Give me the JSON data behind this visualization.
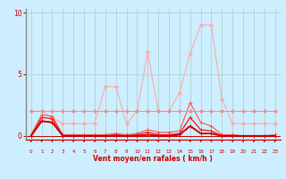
{
  "title": "",
  "xlabel": "Vent moyen/en rafales ( km/h )",
  "x": [
    0,
    1,
    2,
    3,
    4,
    5,
    6,
    7,
    8,
    9,
    10,
    11,
    12,
    13,
    14,
    15,
    16,
    17,
    18,
    19,
    20,
    21,
    22,
    23
  ],
  "lines": [
    {
      "color": "#ffaaaa",
      "linewidth": 0.8,
      "marker": "D",
      "markersize": 2.0,
      "y": [
        2,
        2,
        1.5,
        1,
        1,
        1,
        1,
        4,
        4,
        1,
        2,
        6.8,
        2,
        2,
        3.5,
        6.7,
        9,
        9,
        3,
        1,
        1,
        1,
        1,
        1
      ]
    },
    {
      "color": "#ff5555",
      "linewidth": 0.8,
      "marker": "+",
      "markersize": 3,
      "y": [
        0.1,
        1.7,
        1.6,
        0.1,
        0.1,
        0.1,
        0.1,
        0.1,
        0.2,
        0.1,
        0.2,
        0.5,
        0.3,
        0.3,
        0.4,
        2.7,
        1.1,
        0.8,
        0.1,
        0.1,
        0.0,
        0.0,
        0.0,
        0.1
      ]
    },
    {
      "color": "#ff2222",
      "linewidth": 1.0,
      "marker": "+",
      "markersize": 3,
      "y": [
        0.0,
        1.5,
        1.4,
        0.0,
        0.0,
        0.0,
        0.0,
        0.0,
        0.1,
        0.0,
        0.1,
        0.3,
        0.1,
        0.1,
        0.2,
        1.5,
        0.5,
        0.4,
        0.0,
        0.0,
        0.0,
        0.0,
        0.0,
        0.0
      ]
    },
    {
      "color": "#cc0000",
      "linewidth": 1.4,
      "marker": "+",
      "markersize": 3,
      "y": [
        0.0,
        1.2,
        1.1,
        0.0,
        0.0,
        0.0,
        0.0,
        0.0,
        0.0,
        0.0,
        0.0,
        0.1,
        0.0,
        0.0,
        0.1,
        0.8,
        0.2,
        0.2,
        0.0,
        0.0,
        0.0,
        0.0,
        0.0,
        0.0
      ]
    },
    {
      "color": "#ff8888",
      "linewidth": 0.7,
      "marker": "D",
      "markersize": 2.0,
      "y": [
        2,
        2,
        2,
        2,
        2,
        2,
        2,
        2,
        2,
        2,
        2,
        2,
        2,
        2,
        2,
        2,
        2,
        2,
        2,
        2,
        2,
        2,
        2,
        2
      ]
    }
  ],
  "ylim": [
    0,
    10
  ],
  "xlim": [
    0,
    23
  ],
  "yticks": [
    0,
    5,
    10
  ],
  "xticks": [
    0,
    1,
    2,
    3,
    4,
    5,
    6,
    7,
    8,
    9,
    10,
    11,
    12,
    13,
    14,
    15,
    16,
    17,
    18,
    19,
    20,
    21,
    22,
    23
  ],
  "bg_color": "#cceeff",
  "grid_color": "#aacccc",
  "tick_color": "#cc0000",
  "axis_label_color": "#cc0000"
}
